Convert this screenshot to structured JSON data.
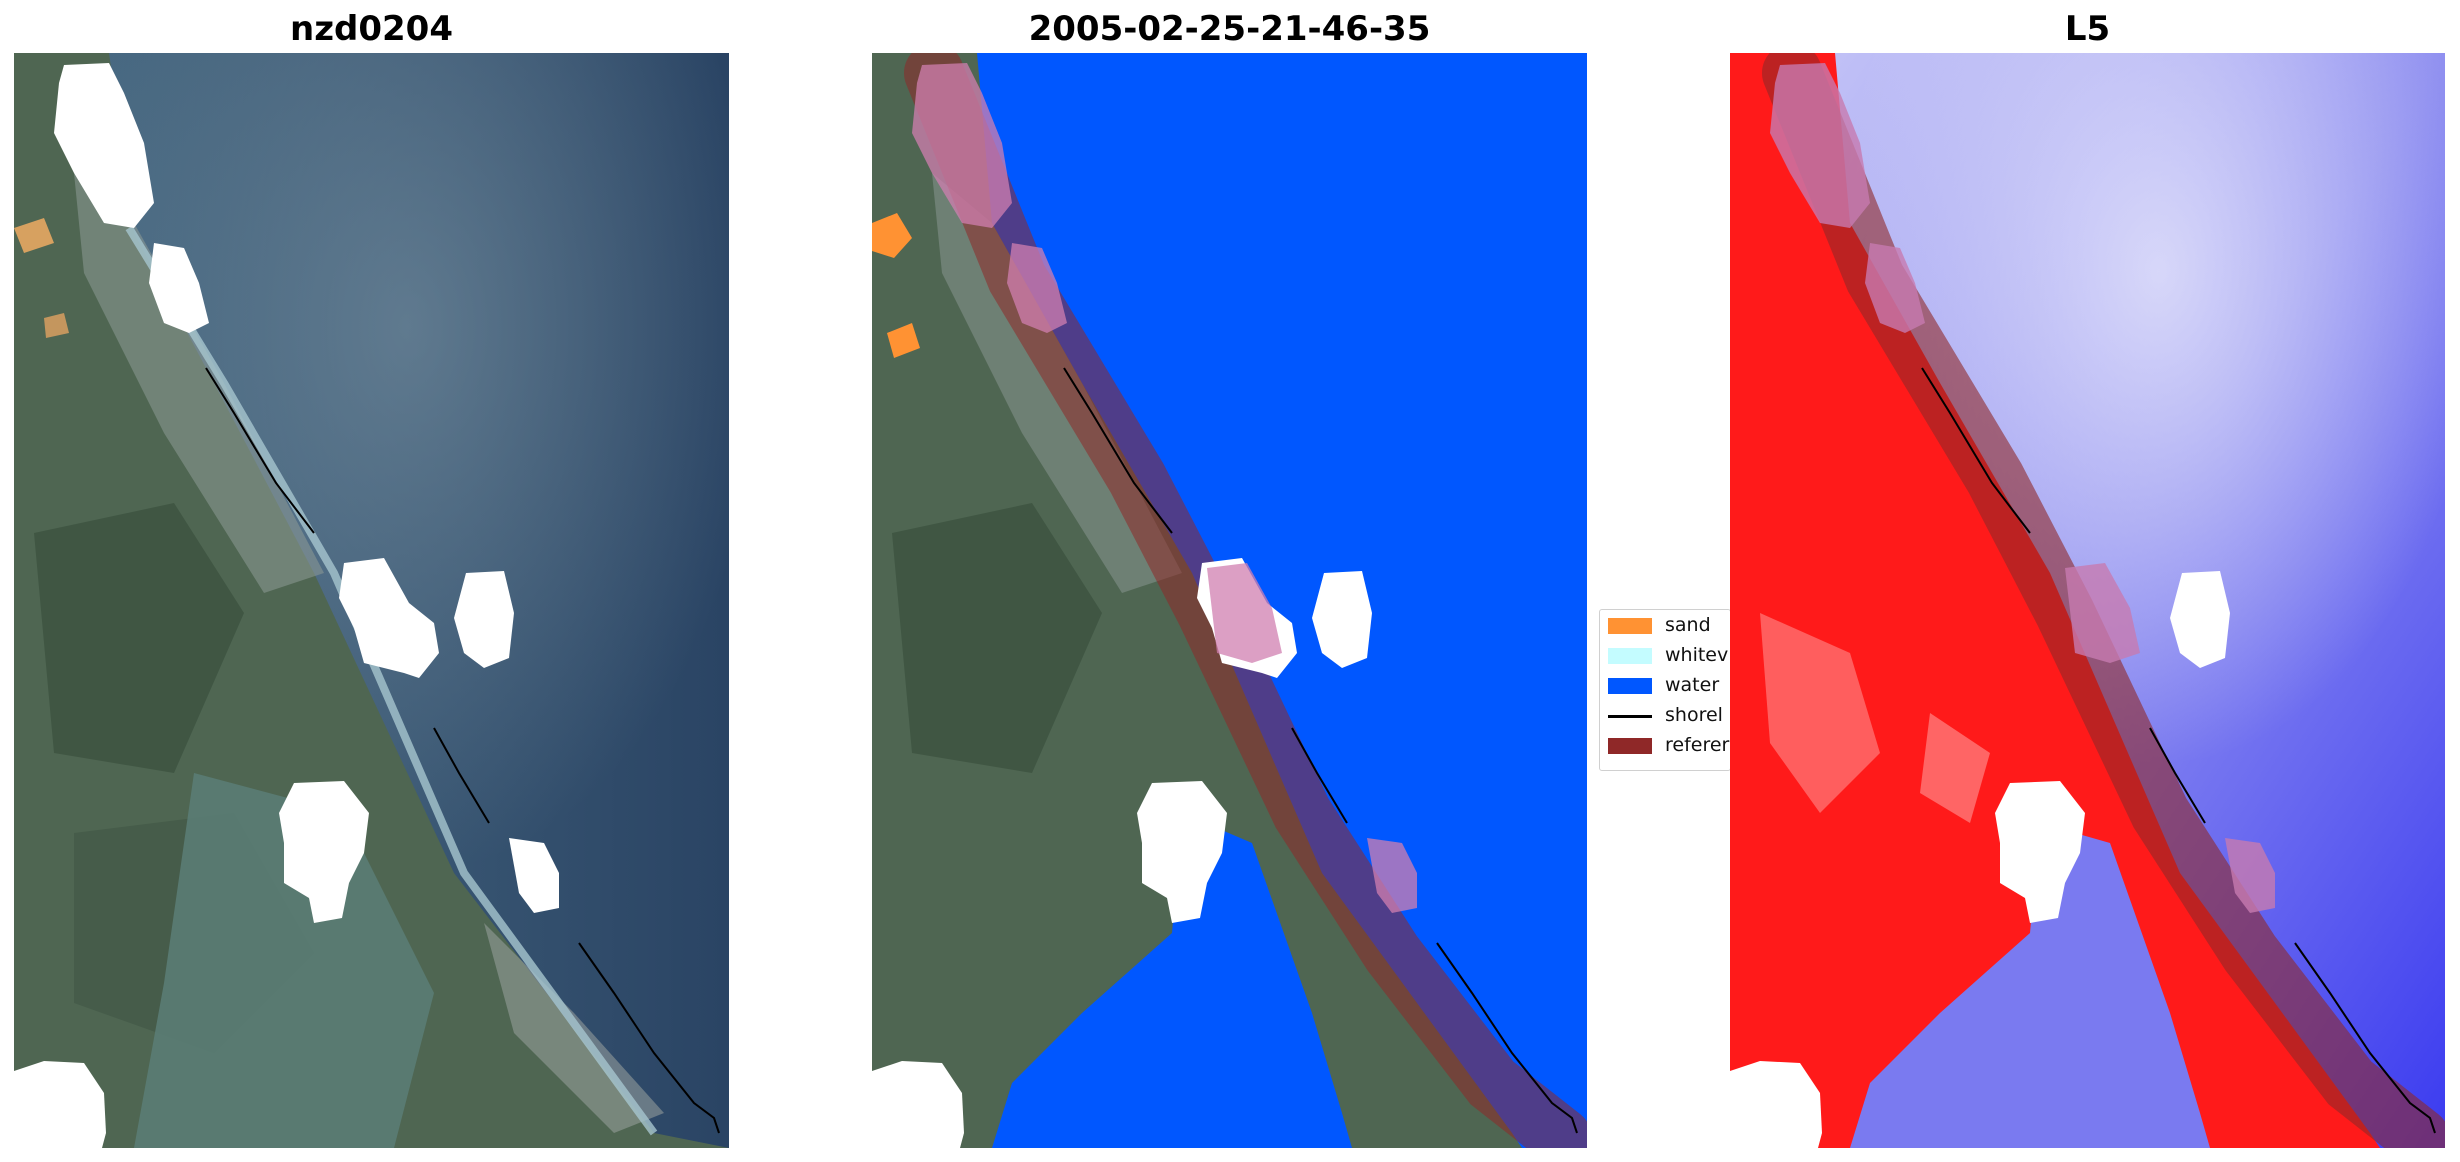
{
  "panels": [
    {
      "title": "nzd0204"
    },
    {
      "title": "2005-02-25-21-46-35"
    },
    {
      "title": "L5"
    }
  ],
  "legend": {
    "items": [
      {
        "label": "sand",
        "color": "#ff9233",
        "kind": "patch"
      },
      {
        "label": "whitev",
        "color": "#c4fcff",
        "kind": "patch"
      },
      {
        "label": "water",
        "color": "#0057ff",
        "kind": "patch"
      },
      {
        "label": "shorel",
        "color": "#000000",
        "kind": "line"
      },
      {
        "label": "referer",
        "color": "#8f2828",
        "kind": "patch"
      }
    ]
  },
  "colors": {
    "water": "#0057ff",
    "buffer": "#8f2828",
    "cloud_mask": "#ffffff",
    "index_high": "#ff1010",
    "index_low": "#3b3bf0"
  }
}
